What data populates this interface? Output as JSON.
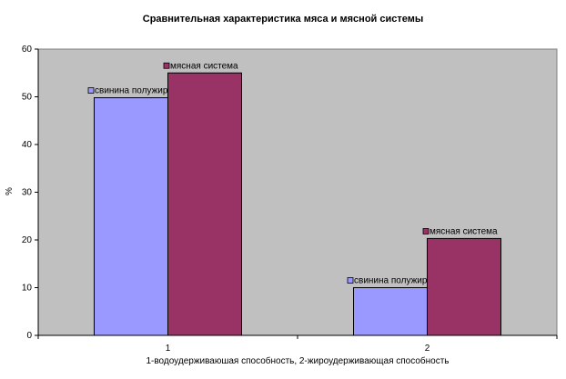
{
  "chart_data": {
    "type": "bar",
    "title": "Сравнительная характеристика мяса и мясной системы",
    "xlabel": "1-водоудерживаюшая способность, 2-жироудерживающая способность",
    "ylabel": "%",
    "categories": [
      "1",
      "2"
    ],
    "ylim": [
      0,
      60
    ],
    "yticks": [
      0,
      10,
      20,
      30,
      40,
      50,
      60
    ],
    "grid": false,
    "plot_background": "#C0C0C0",
    "series": [
      {
        "name": "свинина полужирная",
        "values": [
          49.8,
          10
        ],
        "color": "#9999FF"
      },
      {
        "name": "мясная система",
        "values": [
          55,
          20.3
        ],
        "color": "#993366"
      }
    ],
    "data_labels": "series name with legend key"
  }
}
